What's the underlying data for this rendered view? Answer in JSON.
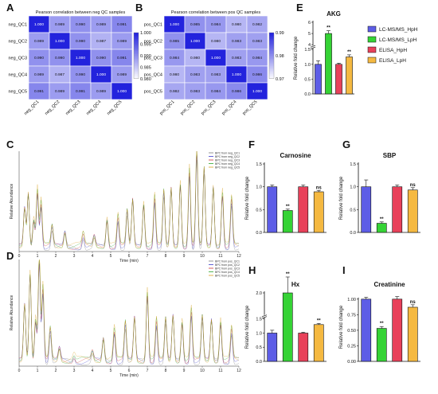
{
  "panel_labels": [
    "A",
    "B",
    "C",
    "D",
    "E",
    "F",
    "G",
    "H",
    "I"
  ],
  "chart_data": [
    {
      "panel": "A",
      "type": "heatmap",
      "title": "Pearson correlation between neg QC samples",
      "rows": [
        "neg_QC1",
        "neg_QC2",
        "neg_QC3",
        "neg_QC4",
        "neg_QC5"
      ],
      "cols": [
        "neg_QC1",
        "neg_QC2",
        "neg_QC3",
        "neg_QC4",
        "neg_QC5"
      ],
      "values": [
        [
          "1.000",
          "0.989",
          "0.990",
          "0.989",
          "0.991"
        ],
        [
          "0.989",
          "1.000",
          "0.990",
          "0.987",
          "0.989"
        ],
        [
          "0.990",
          "0.990",
          "1.000",
          "0.990",
          "0.991"
        ],
        [
          "0.989",
          "0.987",
          "0.990",
          "1.000",
          "0.989"
        ],
        [
          "0.991",
          "0.989",
          "0.991",
          "0.989",
          "1.000"
        ]
      ],
      "colorbar_ticks": [
        "1.000",
        "0.995",
        "0.990",
        "0.985",
        "0.980"
      ],
      "range": [
        0.98,
        1.0
      ]
    },
    {
      "panel": "B",
      "type": "heatmap",
      "title": "Pearson correlation between pos QC samples",
      "rows": [
        "pos_QC1",
        "pos_QC2",
        "pos_QC3",
        "pos_QC4",
        "pos_QC5"
      ],
      "cols": [
        "pos_QC1",
        "pos_QC2",
        "pos_QC3",
        "pos_QC4",
        "pos_QC5"
      ],
      "values": [
        [
          "1.000",
          "0.985",
          "0.984",
          "0.980",
          "0.982"
        ],
        [
          "0.985",
          "1.000",
          "0.980",
          "0.983",
          "0.983"
        ],
        [
          "0.984",
          "0.980",
          "1.000",
          "0.983",
          "0.984"
        ],
        [
          "0.980",
          "0.983",
          "0.983",
          "1.000",
          "0.986"
        ],
        [
          "0.982",
          "0.983",
          "0.984",
          "0.986",
          "1.000"
        ]
      ],
      "colorbar_ticks": [
        "0.99",
        "0.98",
        "0.97"
      ],
      "range": [
        0.97,
        1.0
      ]
    },
    {
      "panel": "C",
      "type": "line",
      "legend": [
        "BPC from neg_QC1",
        "BPC from neg_QC2",
        "BPC from neg_QC3",
        "BPC from neg_QC4",
        "BPC from neg_QC5"
      ],
      "xlabel": "Time (min)",
      "ylabel": "Relative Abundance",
      "xticks": [
        "0",
        "1",
        "2",
        "3",
        "4",
        "5",
        "6",
        "7",
        "8",
        "9",
        "10",
        "11",
        "12"
      ],
      "xlim": [
        0,
        12
      ],
      "ylim": [
        0,
        100
      ],
      "peaks": [
        {
          "x": 0.3,
          "y": 40
        },
        {
          "x": 0.5,
          "y": 55
        },
        {
          "x": 0.8,
          "y": 28
        },
        {
          "x": 1.0,
          "y": 58
        },
        {
          "x": 1.2,
          "y": 45
        },
        {
          "x": 1.8,
          "y": 20
        },
        {
          "x": 2.5,
          "y": 15
        },
        {
          "x": 3.5,
          "y": 12
        },
        {
          "x": 4.1,
          "y": 10
        },
        {
          "x": 4.8,
          "y": 28
        },
        {
          "x": 5.4,
          "y": 30
        },
        {
          "x": 5.9,
          "y": 36
        },
        {
          "x": 6.2,
          "y": 48
        },
        {
          "x": 6.8,
          "y": 44
        },
        {
          "x": 7.4,
          "y": 50
        },
        {
          "x": 7.9,
          "y": 56
        },
        {
          "x": 8.3,
          "y": 60
        },
        {
          "x": 8.8,
          "y": 65
        },
        {
          "x": 9.3,
          "y": 78
        },
        {
          "x": 9.7,
          "y": 98
        },
        {
          "x": 10.1,
          "y": 80
        },
        {
          "x": 10.6,
          "y": 62
        },
        {
          "x": 11.1,
          "y": 55
        },
        {
          "x": 11.6,
          "y": 48
        }
      ]
    },
    {
      "panel": "D",
      "type": "line",
      "legend": [
        "BPC from pos_QC1",
        "BPC from pos_QC2",
        "BPC from pos_QC3",
        "BPC from pos_QC4",
        "BPC from pos_QC5"
      ],
      "xlabel": "Time (min)",
      "ylabel": "Relative Abundance",
      "xticks": [
        "0",
        "1",
        "2",
        "3",
        "4",
        "5",
        "6",
        "7",
        "8",
        "9",
        "10",
        "11",
        "12"
      ],
      "xlim": [
        0,
        12
      ],
      "ylim": [
        0,
        100
      ],
      "peaks": [
        {
          "x": 0.3,
          "y": 55
        },
        {
          "x": 0.6,
          "y": 85
        },
        {
          "x": 0.9,
          "y": 40
        },
        {
          "x": 1.1,
          "y": 100
        },
        {
          "x": 1.3,
          "y": 70
        },
        {
          "x": 1.7,
          "y": 30
        },
        {
          "x": 2.2,
          "y": 12
        },
        {
          "x": 3.0,
          "y": 5
        },
        {
          "x": 4.0,
          "y": 8
        },
        {
          "x": 4.6,
          "y": 22
        },
        {
          "x": 5.2,
          "y": 30
        },
        {
          "x": 5.8,
          "y": 36
        },
        {
          "x": 6.3,
          "y": 42
        },
        {
          "x": 7.0,
          "y": 66
        },
        {
          "x": 7.5,
          "y": 38
        },
        {
          "x": 8.0,
          "y": 40
        },
        {
          "x": 8.4,
          "y": 44
        },
        {
          "x": 8.9,
          "y": 38
        },
        {
          "x": 9.4,
          "y": 48
        },
        {
          "x": 10.0,
          "y": 42
        },
        {
          "x": 10.5,
          "y": 40
        },
        {
          "x": 11.0,
          "y": 38
        },
        {
          "x": 11.6,
          "y": 30
        }
      ]
    },
    {
      "panel": "E",
      "type": "bar",
      "title": "AKG",
      "ylabel": "Relative fold change",
      "categories": [
        "LC-MS/MS_HpH",
        "LC-MS/MS_LpH",
        "ELISA_HpH",
        "ELISA_LpH"
      ],
      "values": [
        1.0,
        5.0,
        1.0,
        1.25
      ],
      "errors": [
        0.12,
        0.25,
        0.04,
        0.07
      ],
      "significance": [
        "",
        "**",
        "",
        "**"
      ],
      "yticks": [
        "0.0",
        "0.5",
        "1.0",
        "1.5",
        "4",
        "5",
        "6"
      ],
      "axis_break": [
        1.5,
        4
      ]
    },
    {
      "panel": "F",
      "type": "bar",
      "title": "Carnosine",
      "ylabel": "Relative fold change",
      "categories": [
        "LC-MS/MS_HpH",
        "LC-MS/MS_LpH",
        "ELISA_HpH",
        "ELISA_LpH"
      ],
      "values": [
        1.0,
        0.48,
        1.0,
        0.89
      ],
      "errors": [
        0.04,
        0.03,
        0.04,
        0.03
      ],
      "significance": [
        "",
        "**",
        "",
        "ns"
      ],
      "yticks": [
        "0.0",
        "0.5",
        "1.0",
        "1.5"
      ],
      "ylim": [
        0,
        1.5
      ]
    },
    {
      "panel": "G",
      "type": "bar",
      "title": "SBP",
      "ylabel": "Relative fold change",
      "categories": [
        "LC-MS/MS_HpH",
        "LC-MS/MS_LpH",
        "ELISA_HpH",
        "ELISA_LpH"
      ],
      "values": [
        1.0,
        0.2,
        1.0,
        0.93
      ],
      "errors": [
        0.15,
        0.03,
        0.04,
        0.05
      ],
      "significance": [
        "",
        "**",
        "",
        "ns"
      ],
      "yticks": [
        "0.0",
        "0.5",
        "1.0",
        "1.5"
      ],
      "ylim": [
        0,
        1.5
      ]
    },
    {
      "panel": "H",
      "type": "bar",
      "title": "Hx",
      "ylabel": "Relative fold change",
      "categories": [
        "LC-MS/MS_HpH",
        "LC-MS/MS_LpH",
        "ELISA_HpH",
        "ELISA_LpH"
      ],
      "values": [
        1.0,
        2.0,
        1.0,
        1.3
      ],
      "errors": [
        0.1,
        0.15,
        0.03,
        0.04
      ],
      "significance": [
        "",
        "**",
        "",
        "**"
      ],
      "yticks": [
        "0.0",
        "0.5",
        "1.0",
        "1.5",
        "2.0"
      ],
      "axis_break": [
        1.5,
        1.8
      ]
    },
    {
      "panel": "I",
      "type": "bar",
      "title": "Creatinine",
      "ylabel": "Relative fold change",
      "categories": [
        "LC-MS/MS_HpH",
        "LC-MS/MS_LpH",
        "ELISA_HpH",
        "ELISA_LpH"
      ],
      "values": [
        1.0,
        0.53,
        1.0,
        0.87
      ],
      "errors": [
        0.03,
        0.03,
        0.04,
        0.04
      ],
      "significance": [
        "",
        "**",
        "",
        "ns"
      ],
      "yticks": [
        "0.00",
        "0.25",
        "0.50",
        "0.75",
        "1.00"
      ],
      "ylim": [
        0,
        1.1
      ]
    }
  ],
  "bar_legend": [
    "LC-MS/MS_HpH",
    "LC-MS/MS_LpH",
    "ELISA_HpH",
    "ELISA_LpH"
  ],
  "bar_colors": [
    "#5d5de6",
    "#35d335",
    "#e8415a",
    "#f5b941"
  ],
  "heatmap_color": "#2323dd",
  "chrom_colors": [
    "#7a7a7a",
    "#3a3acc",
    "#cc3333",
    "#2aa52a",
    "#d8a020"
  ]
}
